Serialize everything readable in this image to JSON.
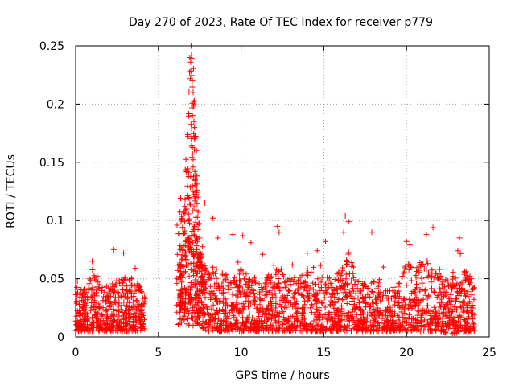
{
  "chart_data": {
    "type": "scatter",
    "title": "Day 270 of 2023, Rate Of TEC Index for receiver p779",
    "xlabel": "GPS time / hours",
    "ylabel": "ROTI / TECUs",
    "xlim": [
      0,
      25
    ],
    "ylim": [
      0,
      0.25
    ],
    "xticks": [
      0,
      5,
      10,
      15,
      20,
      25
    ],
    "yticks": [
      0,
      0.05,
      0.1,
      0.15,
      0.2,
      0.25
    ],
    "xtick_labels": [
      "0",
      "5",
      "10",
      "15",
      "20",
      "25"
    ],
    "ytick_labels": [
      "0",
      "0.05",
      "0.1",
      "0.15",
      "0.2",
      "0.25"
    ],
    "grid": true,
    "marker": "+",
    "color": "#ff0000",
    "data_gap_hours": [
      4.2,
      6.1
    ],
    "envelope": {
      "description_hours": "approximate upper/lower ROTI bounds of the dense point cloud per hour",
      "x": [
        0.0,
        0.5,
        1.0,
        1.5,
        2.0,
        2.5,
        3.0,
        3.5,
        4.2,
        6.1,
        6.5,
        7.0,
        7.5,
        8.0,
        8.5,
        9.0,
        9.5,
        10.0,
        10.5,
        11.0,
        11.5,
        12.0,
        12.5,
        13.0,
        13.5,
        14.0,
        14.5,
        15.0,
        15.5,
        16.0,
        16.5,
        17.0,
        17.5,
        18.0,
        18.5,
        19.0,
        19.5,
        20.0,
        20.5,
        21.0,
        21.5,
        22.0,
        22.5,
        23.0,
        23.5,
        24.0
      ],
      "upper": [
        0.045,
        0.04,
        0.055,
        0.045,
        0.045,
        0.05,
        0.055,
        0.05,
        0.04,
        0.1,
        0.14,
        0.19,
        0.09,
        0.06,
        0.06,
        0.055,
        0.05,
        0.06,
        0.055,
        0.05,
        0.05,
        0.065,
        0.06,
        0.055,
        0.05,
        0.06,
        0.06,
        0.055,
        0.05,
        0.06,
        0.075,
        0.05,
        0.045,
        0.05,
        0.045,
        0.04,
        0.045,
        0.065,
        0.06,
        0.07,
        0.065,
        0.055,
        0.05,
        0.06,
        0.06,
        0.05
      ],
      "lower": [
        0.005,
        0.005,
        0.005,
        0.005,
        0.005,
        0.005,
        0.005,
        0.005,
        0.005,
        0.01,
        0.01,
        0.01,
        0.008,
        0.005,
        0.005,
        0.005,
        0.005,
        0.005,
        0.005,
        0.005,
        0.005,
        0.005,
        0.005,
        0.005,
        0.005,
        0.005,
        0.005,
        0.005,
        0.005,
        0.005,
        0.005,
        0.005,
        0.005,
        0.005,
        0.005,
        0.005,
        0.005,
        0.005,
        0.005,
        0.005,
        0.005,
        0.005,
        0.003,
        0.003,
        0.005,
        0.005
      ]
    },
    "notable_points": {
      "x": [
        0.1,
        1.0,
        2.3,
        2.9,
        3.6,
        6.9,
        6.95,
        7.0,
        7.05,
        7.1,
        7.15,
        7.2,
        7.3,
        7.4,
        7.8,
        8.3,
        8.6,
        9.5,
        10.1,
        10.6,
        11.3,
        12.2,
        12.3,
        13.1,
        14.0,
        14.6,
        15.1,
        16.2,
        16.3,
        16.5,
        16.8,
        17.9,
        18.6,
        20.0,
        20.2,
        21.2,
        21.6,
        22.0,
        23.1,
        23.2,
        23.6
      ],
      "y": [
        0.048,
        0.065,
        0.075,
        0.072,
        0.059,
        0.24,
        0.236,
        0.242,
        0.22,
        0.21,
        0.185,
        0.17,
        0.16,
        0.12,
        0.115,
        0.102,
        0.085,
        0.088,
        0.087,
        0.081,
        0.071,
        0.095,
        0.09,
        0.062,
        0.072,
        0.074,
        0.082,
        0.09,
        0.104,
        0.099,
        0.06,
        0.09,
        0.06,
        0.082,
        0.079,
        0.088,
        0.094,
        0.058,
        0.074,
        0.085,
        0.056
      ]
    }
  }
}
